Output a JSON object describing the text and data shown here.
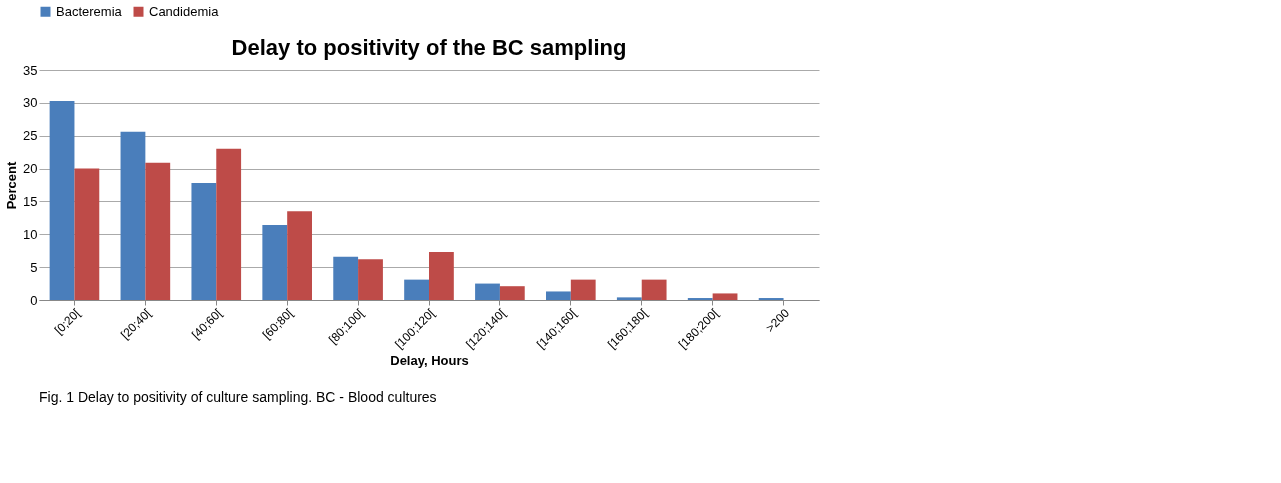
{
  "chart_data": {
    "type": "bar",
    "title": "Delay to positivity of the BC sampling",
    "categories": [
      "[0;20[",
      "[20;40[",
      "[40;60[",
      "[60;80[",
      "[80;100[",
      "[100;120[",
      "[120;140[",
      "[140;160[",
      "[160;180[",
      "[180;200[",
      ">200"
    ],
    "series": [
      {
        "name": "Bacteremia",
        "color": "#4a7ebb",
        "values": [
          30.3,
          25.6,
          17.8,
          11.4,
          6.6,
          3.1,
          2.5,
          1.3,
          0.4,
          0.3,
          0.3
        ]
      },
      {
        "name": "Candidemia",
        "color": "#be4b48",
        "values": [
          20.0,
          20.9,
          23.0,
          13.5,
          6.2,
          7.3,
          2.1,
          3.1,
          3.1,
          1.0,
          0
        ]
      }
    ],
    "xlabel": "Delay, Hours",
    "ylabel": "Percent",
    "ylim": [
      0,
      35
    ],
    "yticks": [
      0,
      5,
      10,
      15,
      20,
      25,
      30,
      35
    ],
    "grid": "y",
    "legend": "top",
    "annotations": [
      "Fig. 1 Delay to positivity of culture sampling. BC - Blood cultures"
    ]
  }
}
